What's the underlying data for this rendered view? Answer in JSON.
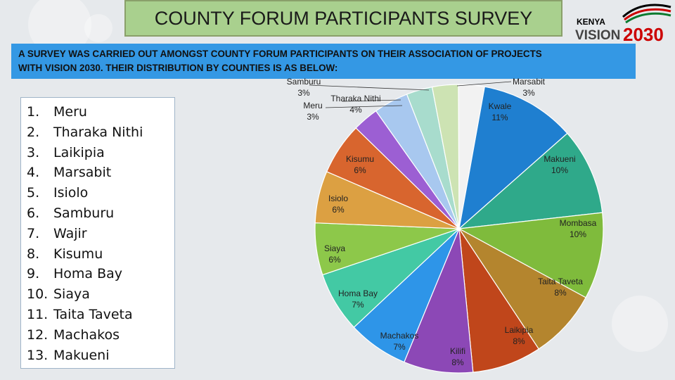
{
  "title": "COUNTY FORUM PARTICIPANTS SURVEY",
  "logo": {
    "top_text": "KENYA",
    "bottom_text": "VISION",
    "year": "2030"
  },
  "banner": {
    "line1": "A SURVEY WAS CARRIED OUT AMONGST COUNTY FORUM PARTICIPANTS ON THEIR ASSOCIATION OF PROJECTS",
    "line2": "WITH VISION 2030. THEIR DISTRIBUTION BY COUNTIES IS AS BELOW:"
  },
  "county_list": [
    {
      "num": "1.",
      "name": "Meru"
    },
    {
      "num": "2.",
      "name": "Tharaka Nithi"
    },
    {
      "num": "3.",
      "name": "Laikipia"
    },
    {
      "num": "4.",
      "name": "Marsabit"
    },
    {
      "num": "5.",
      "name": "Isiolo"
    },
    {
      "num": "6.",
      "name": "Samburu"
    },
    {
      "num": "7.",
      "name": "Wajir"
    },
    {
      "num": "8.",
      "name": "Kisumu"
    },
    {
      "num": "9.",
      "name": "Homa Bay"
    },
    {
      "num": "10.",
      "name": "Siaya"
    },
    {
      "num": "11.",
      "name": "Taita Taveta"
    },
    {
      "num": "12.",
      "name": "Machakos"
    },
    {
      "num": "13.",
      "name": "Makueni"
    }
  ],
  "chart_data": {
    "type": "pie",
    "slices": [
      {
        "label": "Marsabit",
        "value": 3,
        "pct_text": "3%",
        "color": "#f2f2f2"
      },
      {
        "label": "Kwale",
        "value": 11,
        "pct_text": "11%",
        "color": "#1f7fd0"
      },
      {
        "label": "Makueni",
        "value": 10,
        "pct_text": "10%",
        "color": "#2fa98a"
      },
      {
        "label": "Mombasa",
        "value": 10,
        "pct_text": "10%",
        "color": "#7fbb3c"
      },
      {
        "label": "Taita Taveta",
        "value": 8,
        "pct_text": "8%",
        "color": "#b4852e"
      },
      {
        "label": "Laikipia",
        "value": 8,
        "pct_text": "8%",
        "color": "#c0461b"
      },
      {
        "label": "Kilifi",
        "value": 8,
        "pct_text": "8%",
        "color": "#8c48b6"
      },
      {
        "label": "Machakos",
        "value": 7,
        "pct_text": "7%",
        "color": "#2e95e8"
      },
      {
        "label": "Homa Bay",
        "value": 7,
        "pct_text": "7%",
        "color": "#43c9a4"
      },
      {
        "label": "Siaya",
        "value": 6,
        "pct_text": "6%",
        "color": "#8dc84a"
      },
      {
        "label": "Isiolo",
        "value": 6,
        "pct_text": "6%",
        "color": "#dca042"
      },
      {
        "label": "Kisumu",
        "value": 6,
        "pct_text": "6%",
        "color": "#d8652e"
      },
      {
        "label": "Meru",
        "value": 3,
        "pct_text": "3%",
        "color": "#9c5fd3"
      },
      {
        "label": "Tharaka Nithi",
        "value": 4,
        "pct_text": "4%",
        "color": "#a8c8ef"
      },
      {
        "label": "Samburu",
        "value": 3,
        "pct_text": "3%",
        "color": "#a8dccd"
      },
      {
        "label": "",
        "value": 3,
        "pct_text": "",
        "color": "#cde3b3"
      }
    ]
  }
}
